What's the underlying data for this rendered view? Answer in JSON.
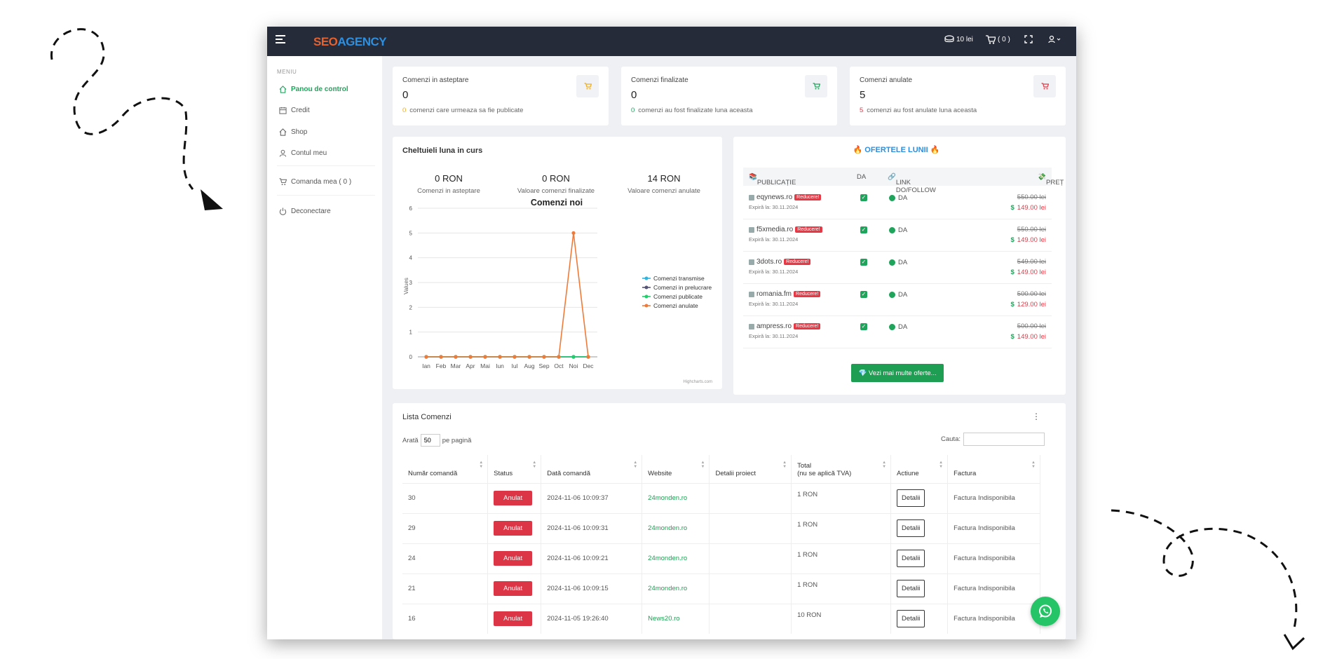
{
  "header": {
    "logo_a": "SEO",
    "logo_b": "AGENCY",
    "credit": "10 lei",
    "cart": "( 0 )"
  },
  "sidebar": {
    "heading": "MENIU",
    "items": [
      {
        "label": "Panou de control",
        "icon": "home-icon",
        "active": true
      },
      {
        "label": "Credit",
        "icon": "calendar-icon"
      },
      {
        "label": "Shop",
        "icon": "home-icon"
      },
      {
        "label": "Contul meu",
        "icon": "user-icon"
      },
      {
        "label": "Comanda mea ( 0 )",
        "icon": "cart-icon"
      },
      {
        "label": "Deconectare",
        "icon": "power-icon"
      }
    ]
  },
  "stats": [
    {
      "label": "Comenzi in asteptare",
      "value": "0",
      "sub_num": "0",
      "sub_text": "comenzi care urmeaza sa fie publicate",
      "color": "#f0ad1f"
    },
    {
      "label": "Comenzi finalizate",
      "value": "0",
      "sub_num": "0",
      "sub_text": "comenzi au fost finalizate luna aceasta",
      "color": "#1fa55b"
    },
    {
      "label": "Comenzi anulate",
      "value": "5",
      "sub_num": "5",
      "sub_text": "comenzi au fost anulate luna aceasta",
      "color": "#e63946"
    }
  ],
  "spend": {
    "title": "Cheltuieli luna in curs",
    "items": [
      {
        "value": "0 RON",
        "label": "Comenzi in asteptare"
      },
      {
        "value": "0 RON",
        "label": "Valoare comenzi finalizate"
      },
      {
        "value": "14 RON",
        "label": "Valoare comenzi anulate"
      }
    ]
  },
  "chart_data": {
    "type": "line",
    "title": "Comenzi noi",
    "ylabel": "Values",
    "ylim": [
      0,
      6
    ],
    "yticks": [
      "0",
      "1",
      "2",
      "3",
      "4",
      "5",
      "6"
    ],
    "categories": [
      "Ian",
      "Feb",
      "Mar",
      "Apr",
      "Mai",
      "Iun",
      "Iul",
      "Aug",
      "Sep",
      "Oct",
      "Noi",
      "Dec"
    ],
    "series": [
      {
        "name": "Comenzi transmise",
        "color": "#2bb5e0",
        "values": [
          0,
          0,
          0,
          0,
          0,
          0,
          0,
          0,
          0,
          0,
          0,
          0
        ]
      },
      {
        "name": "Comenzi in prelucrare",
        "color": "#555577",
        "values": [
          0,
          0,
          0,
          0,
          0,
          0,
          0,
          0,
          0,
          0,
          0,
          0
        ]
      },
      {
        "name": "Comenzi publicate",
        "color": "#1fcf6b",
        "values": [
          0,
          0,
          0,
          0,
          0,
          0,
          0,
          0,
          0,
          0,
          0,
          0
        ]
      },
      {
        "name": "Comenzi anulate",
        "color": "#ef7b3a",
        "values": [
          0,
          0,
          0,
          0,
          0,
          0,
          0,
          0,
          0,
          0,
          5,
          0
        ]
      }
    ],
    "credit": "Highcharts.com",
    "legend": "right"
  },
  "offers": {
    "title": "OFERTELE LUNII",
    "cols": [
      "PUBLICAȚIE",
      "DA",
      "LINK DO/FOLLOW",
      "PREȚ"
    ],
    "badge": "Reducere!",
    "rows": [
      {
        "name": "eqynews.ro",
        "exp": "Expiră la: 30.11.2024",
        "link": "DA",
        "old": "550.00 lei",
        "new": "149.00 lei"
      },
      {
        "name": "f5xmedia.ro",
        "exp": "Expiră la: 30.11.2024",
        "link": "DA",
        "old": "550.00 lei",
        "new": "149.00 lei"
      },
      {
        "name": "3dots.ro",
        "exp": "Expiră la: 30.11.2024",
        "link": "DA",
        "old": "549.00 lei",
        "new": "149.00 lei"
      },
      {
        "name": "romania.fm",
        "exp": "Expiră la: 30.11.2024",
        "link": "DA",
        "old": "500.00 lei",
        "new": "129.00 lei"
      },
      {
        "name": "ampress.ro",
        "exp": "Expiră la: 30.11.2024",
        "link": "DA",
        "old": "500.00 lei",
        "new": "149.00 lei"
      }
    ],
    "more": "Vezi mai multe oferte..."
  },
  "orders": {
    "title": "Lista Comenzi",
    "show_pre": "Arată",
    "show_val": "50",
    "show_post": "pe pagină",
    "search_label": "Cauta:",
    "cols": [
      "Număr comandă",
      "Status",
      "Dată comandă",
      "Website",
      "Detalii proiect",
      "Total\n(nu se aplică TVA)",
      "Actiune",
      "Factura"
    ],
    "rows": [
      {
        "nr": "30",
        "status": "Anulat",
        "date": "2024-11-06 10:09:37",
        "site": "24monden.ro",
        "det": "",
        "total": "1 RON",
        "action": "Detalii",
        "inv": "Factura Indisponibila"
      },
      {
        "nr": "29",
        "status": "Anulat",
        "date": "2024-11-06 10:09:31",
        "site": "24monden.ro",
        "det": "",
        "total": "1 RON",
        "action": "Detalii",
        "inv": "Factura Indisponibila"
      },
      {
        "nr": "24",
        "status": "Anulat",
        "date": "2024-11-06 10:09:21",
        "site": "24monden.ro",
        "det": "",
        "total": "1 RON",
        "action": "Detalii",
        "inv": "Factura Indisponibila"
      },
      {
        "nr": "21",
        "status": "Anulat",
        "date": "2024-11-06 10:09:15",
        "site": "24monden.ro",
        "det": "",
        "total": "1 RON",
        "action": "Detalii",
        "inv": "Factura Indisponibila"
      },
      {
        "nr": "16",
        "status": "Anulat",
        "date": "2024-11-05 19:26:40",
        "site": "News20.ro",
        "det": "",
        "total": "10 RON",
        "action": "Detalii",
        "inv": "Factura Indisponibila"
      }
    ]
  }
}
